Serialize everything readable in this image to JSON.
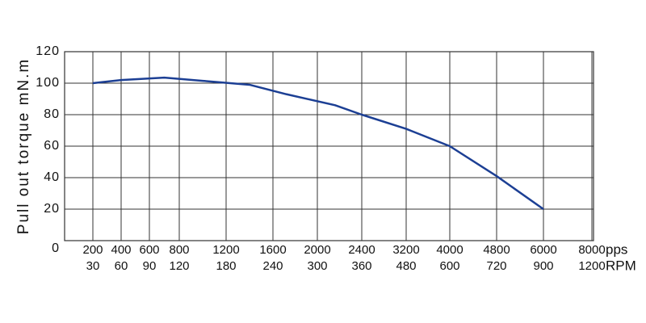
{
  "chart_data": {
    "type": "line",
    "y_label": "Pull out torque mN.m",
    "x_unit": "pps",
    "x2_unit": "RPM",
    "x": [
      200,
      400,
      700,
      1000,
      1400,
      1720,
      2160,
      2400,
      3200,
      4000,
      4800,
      6000
    ],
    "series": [
      {
        "name": "Pull out torque",
        "color": "#1c3f94",
        "values": [
          100,
          102,
          103.5,
          101.5,
          99,
          93,
          86,
          80,
          71,
          60,
          41,
          20
        ]
      }
    ],
    "xticks": [
      200,
      400,
      600,
      800,
      1200,
      1600,
      2000,
      2400,
      3200,
      4000,
      4800,
      6000,
      8000
    ],
    "x2ticks": [
      30,
      60,
      90,
      120,
      180,
      240,
      300,
      360,
      480,
      600,
      720,
      900,
      1200
    ],
    "ylim": [
      0,
      120
    ],
    "yticks": [
      0,
      20,
      40,
      60,
      80,
      100,
      120
    ],
    "grid": true
  }
}
